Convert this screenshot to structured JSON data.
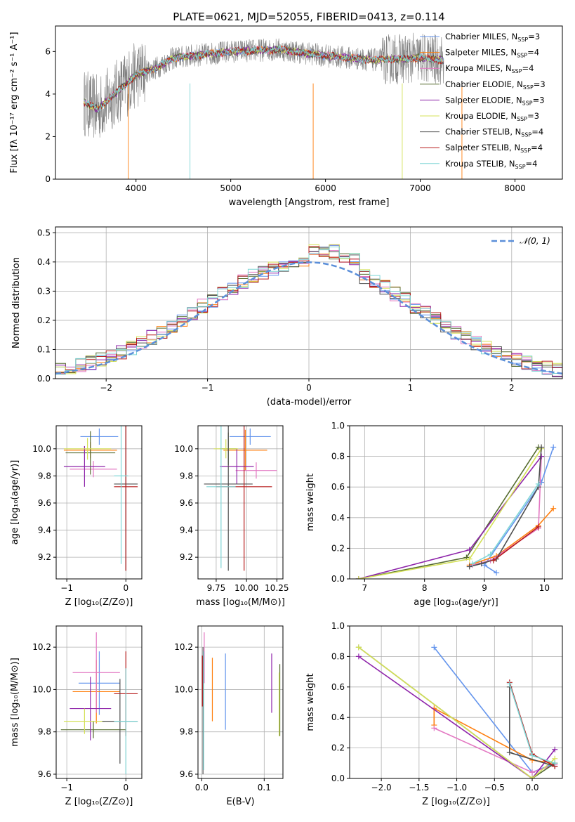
{
  "title": "PLATE=0621, MJD=52055, FIBERID=0413, z=0.114",
  "colors": [
    "#6495ed",
    "#ff7f0e",
    "#e377c2",
    "#556b2f",
    "#8e24aa",
    "#d4e157",
    "#505050",
    "#b71c1c",
    "#7fd6d6"
  ],
  "chart_data": [
    {
      "id": "spectrum",
      "type": "line",
      "xlabel": "wavelength [Angstrom, rest frame]",
      "ylabel": "Flux [fλ 10⁻¹⁷ erg cm⁻² s⁻¹ A⁻¹]",
      "xlim": [
        3150,
        8500
      ],
      "ylim": [
        0,
        7.2
      ],
      "xticks": [
        4000,
        5000,
        6000,
        7000,
        8000
      ],
      "yticks": [
        0,
        2,
        4,
        6
      ],
      "legend_position": "right",
      "legend": [
        {
          "label": "Chabrier MILES, N",
          "sub": "SSP",
          "tail": "=3",
          "color_index": 0
        },
        {
          "label": "Salpeter MILES, N",
          "sub": "SSP",
          "tail": "=4",
          "color_index": 1
        },
        {
          "label": "Kroupa MILES, N",
          "sub": "SSP",
          "tail": "=4",
          "color_index": 2
        },
        {
          "label": "Chabrier ELODIE, N",
          "sub": "SSP",
          "tail": "=3",
          "color_index": 3
        },
        {
          "label": "Salpeter ELODIE, N",
          "sub": "SSP",
          "tail": "=3",
          "color_index": 4
        },
        {
          "label": "Kroupa ELODIE, N",
          "sub": "SSP",
          "tail": "=3",
          "color_index": 5
        },
        {
          "label": "Chabrier STELIB, N",
          "sub": "SSP",
          "tail": "=4",
          "color_index": 6
        },
        {
          "label": "Salpeter STELIB, N",
          "sub": "SSP",
          "tail": "=4",
          "color_index": 7
        },
        {
          "label": "Kroupa STELIB, N",
          "sub": "SSP",
          "tail": "=4",
          "color_index": 8
        }
      ],
      "data_series": {
        "name": "data",
        "color": "#808080",
        "x_range": [
          3450,
          7250
        ]
      },
      "model_envelope": [
        [
          3450,
          3.6
        ],
        [
          3600,
          3.3
        ],
        [
          3800,
          4.1
        ],
        [
          4000,
          4.9
        ],
        [
          4200,
          5.2
        ],
        [
          4400,
          5.7
        ],
        [
          4600,
          5.8
        ],
        [
          5000,
          6.0
        ],
        [
          5500,
          6.1
        ],
        [
          6000,
          5.8
        ],
        [
          6500,
          5.6
        ],
        [
          7000,
          5.7
        ],
        [
          7250,
          5.6
        ]
      ]
    },
    {
      "id": "residuals",
      "type": "histogram",
      "xlabel": "(data-model)/error",
      "ylabel": "Normed distribution",
      "xlim": [
        -2.5,
        2.5
      ],
      "ylim": [
        0,
        0.52
      ],
      "xticks": [
        -2,
        -1,
        0,
        1,
        2
      ],
      "yticks": [
        0.0,
        0.1,
        0.2,
        0.3,
        0.4,
        0.5
      ],
      "grid": true,
      "legend_position": "top-right",
      "reference_label": "𝒩(0, 1)",
      "reference_color": "#5b8fd9",
      "bin_width": 0.1
    },
    {
      "id": "age-vs-z",
      "type": "errorbar",
      "xlabel": "Z [log₁₀(Z/Z⊙)]",
      "ylabel": "age  [log₁₀(age/yr)]",
      "xlim": [
        -1.18,
        0.27
      ],
      "ylim": [
        9.04,
        10.17
      ],
      "xticks": [
        -1,
        0
      ],
      "yticks": [
        9.2,
        9.4,
        9.6,
        9.8,
        10.0
      ],
      "grid": true,
      "points": [
        {
          "x": -0.45,
          "xerr": 0.32,
          "y": 10.09,
          "yerr": 0.06
        },
        {
          "x": -0.6,
          "xerr": 0.45,
          "y": 9.99,
          "yerr": 0.06
        },
        {
          "x": -0.55,
          "xerr": 0.4,
          "y": 9.85,
          "yerr": 0.06
        },
        {
          "x": -0.6,
          "xerr": 0.42,
          "y": 9.97,
          "yerr": 0.16
        },
        {
          "x": -0.7,
          "xerr": 0.35,
          "y": 9.87,
          "yerr": 0.15
        },
        {
          "x": -0.65,
          "xerr": 0.4,
          "y": 10.0,
          "yerr": 0.08
        },
        {
          "x": 0.0,
          "xerr": 0.2,
          "y": 9.74,
          "yerr": 0.64
        },
        {
          "x": 0.0,
          "xerr": 0.2,
          "y": 9.72,
          "yerr": 0.62
        },
        {
          "x": -0.08,
          "xerr": 0.12,
          "y": 9.8,
          "yerr": 0.65
        }
      ]
    },
    {
      "id": "age-vs-mass",
      "type": "errorbar",
      "xlabel": "mass [log₁₀(M/M⊙)]",
      "ylabel": "",
      "xlim": [
        9.6,
        10.3
      ],
      "ylim": [
        9.04,
        10.17
      ],
      "xticks": [
        9.75,
        10.0,
        10.25
      ],
      "yticks": [
        9.2,
        9.4,
        9.6,
        9.8,
        10.0
      ],
      "grid": true,
      "points": [
        {
          "x": 10.03,
          "xerr": 0.17,
          "y": 10.09,
          "yerr": 0.06
        },
        {
          "x": 9.99,
          "xerr": 0.18,
          "y": 9.99,
          "yerr": 0.15
        },
        {
          "x": 10.08,
          "xerr": 0.17,
          "y": 9.84,
          "yerr": 0.06
        },
        {
          "x": 9.85,
          "xerr": 0.07,
          "y": 10.0,
          "yerr": 0.12
        },
        {
          "x": 9.92,
          "xerr": 0.14,
          "y": 9.87,
          "yerr": 0.13
        },
        {
          "x": 9.83,
          "xerr": 0.1,
          "y": 10.0,
          "yerr": 0.07
        },
        {
          "x": 9.85,
          "xerr": 0.2,
          "y": 9.74,
          "yerr": 0.64
        },
        {
          "x": 9.98,
          "xerr": 0.23,
          "y": 9.72,
          "yerr": 0.62
        },
        {
          "x": 9.79,
          "xerr": 0.12,
          "y": 9.72,
          "yerr": 0.6
        }
      ]
    },
    {
      "id": "weight-vs-age",
      "type": "line",
      "xlabel": "age  [log₁₀(age/yr)]",
      "ylabel": "mass weight",
      "xlim": [
        6.75,
        10.3
      ],
      "ylim": [
        0,
        1.0
      ],
      "xticks": [
        7,
        8,
        9,
        10
      ],
      "yticks": [
        0.0,
        0.2,
        0.4,
        0.6,
        0.8,
        1.0
      ],
      "grid": true,
      "series": [
        {
          "color_index": 0,
          "points": [
            [
              9.2,
              0.04
            ],
            [
              9.0,
              0.09
            ],
            [
              9.95,
              0.63
            ],
            [
              10.15,
              0.86
            ]
          ]
        },
        {
          "color_index": 1,
          "points": [
            [
              8.75,
              0.09
            ],
            [
              9.2,
              0.15
            ],
            [
              9.9,
              0.35
            ],
            [
              10.15,
              0.46
            ]
          ]
        },
        {
          "color_index": 2,
          "points": [
            [
              8.8,
              0.09
            ],
            [
              9.1,
              0.12
            ],
            [
              9.9,
              0.33
            ],
            [
              9.95,
              0.8
            ]
          ]
        },
        {
          "color_index": 3,
          "points": [
            [
              6.9,
              0.0
            ],
            [
              8.7,
              0.14
            ],
            [
              9.9,
              0.86
            ]
          ]
        },
        {
          "color_index": 4,
          "points": [
            [
              6.9,
              0.0
            ],
            [
              8.75,
              0.19
            ],
            [
              9.95,
              0.8
            ]
          ]
        },
        {
          "color_index": 5,
          "points": [
            [
              6.9,
              0.0
            ],
            [
              8.75,
              0.13
            ],
            [
              9.95,
              0.85
            ]
          ]
        },
        {
          "color_index": 6,
          "points": [
            [
              8.75,
              0.08
            ],
            [
              8.95,
              0.1
            ],
            [
              9.2,
              0.13
            ],
            [
              9.9,
              0.6
            ],
            [
              9.95,
              0.86
            ]
          ]
        },
        {
          "color_index": 7,
          "points": [
            [
              9.15,
              0.12
            ],
            [
              9.9,
              0.34
            ]
          ]
        },
        {
          "color_index": 8,
          "points": [
            [
              8.8,
              0.1
            ],
            [
              9.1,
              0.16
            ],
            [
              9.9,
              0.62
            ]
          ]
        }
      ]
    },
    {
      "id": "mass-vs-z",
      "type": "errorbar",
      "xlabel": "Z [log₁₀(Z/Z⊙)]",
      "ylabel": "mass [log₁₀(M/M⊙)]",
      "xlim": [
        -1.18,
        0.27
      ],
      "ylim": [
        9.58,
        10.3
      ],
      "xticks": [
        -1,
        0
      ],
      "yticks": [
        9.6,
        9.8,
        10.0,
        10.2
      ],
      "grid": true,
      "points": [
        {
          "x": -0.45,
          "xerr": 0.35,
          "y": 10.03,
          "yerr": 0.15
        },
        {
          "x": -0.5,
          "xerr": 0.4,
          "y": 9.99,
          "yerr": 0.15
        },
        {
          "x": -0.5,
          "xerr": 0.4,
          "y": 10.08,
          "yerr": 0.19
        },
        {
          "x": -0.55,
          "xerr": 0.55,
          "y": 9.81,
          "yerr": 0.04
        },
        {
          "x": -0.6,
          "xerr": 0.35,
          "y": 9.91,
          "yerr": 0.15
        },
        {
          "x": -0.7,
          "xerr": 0.35,
          "y": 9.85,
          "yerr": 0.06
        },
        {
          "x": -0.1,
          "xerr": 0.3,
          "y": 9.85,
          "yerr": 0.2
        },
        {
          "x": 0.0,
          "xerr": 0.2,
          "y": 9.98,
          "yerr": 0.2
        },
        {
          "x": 0.0,
          "xerr": 0.2,
          "y": 9.85,
          "yerr": 0.25
        }
      ]
    },
    {
      "id": "mass-vs-ebv",
      "type": "errorbar",
      "xlabel": "E(B-V)",
      "ylabel": "",
      "xlim": [
        -0.006,
        0.13
      ],
      "ylim": [
        9.58,
        10.3
      ],
      "xticks": [
        0.0,
        0.1
      ],
      "yticks": [
        9.6,
        9.8,
        10.0,
        10.2
      ],
      "grid": true,
      "points": [
        {
          "x": 0.038,
          "y": 9.99,
          "yerr": 0.18
        },
        {
          "x": 0.017,
          "y": 10.0,
          "yerr": 0.15
        },
        {
          "x": 0.004,
          "y": 10.15,
          "yerr": 0.12
        },
        {
          "x": 0.125,
          "y": 9.95,
          "yerr": 0.17
        },
        {
          "x": 0.112,
          "y": 10.03,
          "yerr": 0.14
        },
        {
          "x": 0.124,
          "y": 9.93,
          "yerr": 0.15
        },
        {
          "x": 0.002,
          "y": 9.9,
          "yerr": 0.3
        },
        {
          "x": 0.001,
          "y": 10.04,
          "yerr": 0.12
        },
        {
          "x": 0.003,
          "y": 9.9,
          "yerr": 0.28
        }
      ]
    },
    {
      "id": "weight-vs-z",
      "type": "line",
      "xlabel": "Z [log₁₀(Z/Z⊙)]",
      "ylabel": "mass weight",
      "xlim": [
        -2.42,
        0.4
      ],
      "ylim": [
        0,
        1.0
      ],
      "xticks": [
        -2.0,
        -1.5,
        -1.0,
        -0.5,
        0.0
      ],
      "yticks": [
        0.0,
        0.2,
        0.4,
        0.6,
        0.8,
        1.0
      ],
      "grid": true,
      "series": [
        {
          "color_index": 0,
          "points": [
            [
              -1.3,
              0.86
            ],
            [
              0.0,
              0.04
            ],
            [
              0.3,
              0.1
            ]
          ]
        },
        {
          "color_index": 1,
          "points": [
            [
              -1.3,
              0.35
            ],
            [
              -1.3,
              0.46
            ],
            [
              0.0,
              0.12
            ],
            [
              0.3,
              0.1
            ]
          ]
        },
        {
          "color_index": 2,
          "points": [
            [
              -1.3,
              0.33
            ],
            [
              0.0,
              0.04
            ],
            [
              0.3,
              0.09
            ]
          ]
        },
        {
          "color_index": 3,
          "points": [
            [
              -2.3,
              0.86
            ],
            [
              0.0,
              0.0
            ],
            [
              0.3,
              0.1
            ]
          ]
        },
        {
          "color_index": 4,
          "points": [
            [
              -2.3,
              0.8
            ],
            [
              0.0,
              0.0
            ],
            [
              0.3,
              0.19
            ]
          ]
        },
        {
          "color_index": 5,
          "points": [
            [
              -2.3,
              0.86
            ],
            [
              0.0,
              0.0
            ],
            [
              0.3,
              0.13
            ]
          ]
        },
        {
          "color_index": 6,
          "points": [
            [
              -0.3,
              0.6
            ],
            [
              -0.3,
              0.17
            ],
            [
              0.3,
              0.08
            ]
          ]
        },
        {
          "color_index": 7,
          "points": [
            [
              -0.3,
              0.63
            ],
            [
              0.0,
              0.16
            ],
            [
              0.3,
              0.08
            ]
          ]
        },
        {
          "color_index": 8,
          "points": [
            [
              -0.3,
              0.62
            ],
            [
              0.0,
              0.15
            ],
            [
              0.3,
              0.1
            ]
          ]
        }
      ]
    }
  ]
}
